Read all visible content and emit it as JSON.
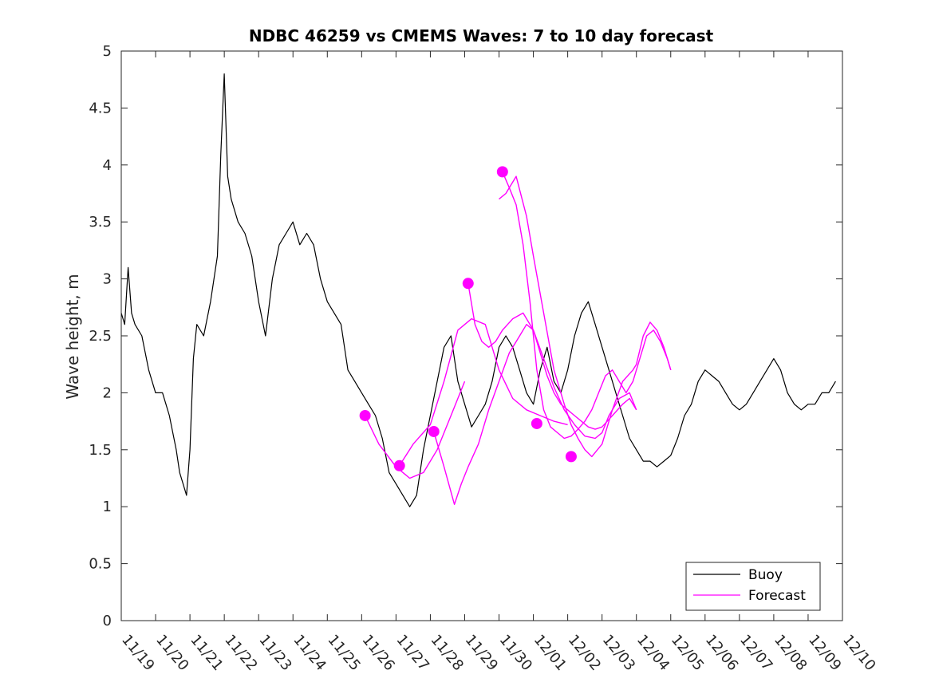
{
  "chart_data": {
    "type": "line",
    "title": "NDBC 46259 vs CMEMS Waves: 7 to 10 day forecast",
    "xlabel": "",
    "ylabel": "Wave height, m",
    "xlim": [
      0,
      21
    ],
    "ylim": [
      0,
      5
    ],
    "yticks": [
      0,
      0.5,
      1,
      1.5,
      2,
      2.5,
      3,
      3.5,
      4,
      4.5,
      5
    ],
    "ytick_labels": [
      "0",
      "0.5",
      "1",
      "1.5",
      "2",
      "2.5",
      "3",
      "3.5",
      "4",
      "4.5",
      "5"
    ],
    "xticks": [
      0,
      1,
      2,
      3,
      4,
      5,
      6,
      7,
      8,
      9,
      10,
      11,
      12,
      13,
      14,
      15,
      16,
      17,
      18,
      19,
      20,
      21
    ],
    "xtick_labels": [
      "11/19",
      "11/20",
      "11/21",
      "11/22",
      "11/23",
      "11/24",
      "11/25",
      "11/26",
      "11/27",
      "11/28",
      "11/29",
      "11/30",
      "12/01",
      "12/02",
      "12/03",
      "12/04",
      "12/05",
      "12/06",
      "12/07",
      "12/08",
      "12/09",
      "12/10"
    ],
    "legend": {
      "location": "bottom-right",
      "entries": [
        "Buoy",
        "Forecast"
      ]
    },
    "colors": {
      "buoy": "#000000",
      "forecast": "#ff00ff",
      "axis": "#262626"
    },
    "buoy": {
      "name": "Buoy",
      "x": [
        0,
        0.1,
        0.2,
        0.3,
        0.4,
        0.6,
        0.8,
        1.0,
        1.2,
        1.4,
        1.6,
        1.7,
        1.8,
        1.9,
        2.0,
        2.1,
        2.2,
        2.4,
        2.6,
        2.8,
        2.9,
        3.0,
        3.1,
        3.2,
        3.4,
        3.6,
        3.8,
        4.0,
        4.2,
        4.4,
        4.6,
        4.8,
        5.0,
        5.2,
        5.4,
        5.6,
        5.8,
        6.0,
        6.2,
        6.4,
        6.6,
        6.8,
        7.0,
        7.2,
        7.4,
        7.6,
        7.8,
        8.0,
        8.2,
        8.4,
        8.6,
        8.8,
        9.0,
        9.2,
        9.4,
        9.6,
        9.8,
        10.0,
        10.2,
        10.4,
        10.6,
        10.8,
        11.0,
        11.2,
        11.4,
        11.6,
        11.8,
        12.0,
        12.2,
        12.4,
        12.6,
        12.8,
        13.0,
        13.2,
        13.4,
        13.6,
        13.8,
        14.0,
        14.2,
        14.4,
        14.6,
        14.8,
        15.0,
        15.2,
        15.4,
        15.6,
        15.8,
        16.0,
        16.2,
        16.4,
        16.6,
        16.8,
        17.0,
        17.2,
        17.4,
        17.6,
        17.8,
        18.0,
        18.2,
        18.4,
        18.6,
        18.8,
        19.0,
        19.2,
        19.4,
        19.6,
        19.8,
        20.0,
        20.2,
        20.4,
        20.6,
        20.8
      ],
      "values": [
        2.7,
        2.6,
        3.1,
        2.7,
        2.6,
        2.5,
        2.2,
        2.0,
        2.0,
        1.8,
        1.5,
        1.3,
        1.2,
        1.1,
        1.5,
        2.3,
        2.6,
        2.5,
        2.8,
        3.2,
        4.1,
        4.8,
        3.9,
        3.7,
        3.5,
        3.4,
        3.2,
        2.8,
        2.5,
        3.0,
        3.3,
        3.4,
        3.5,
        3.3,
        3.4,
        3.3,
        3.0,
        2.8,
        2.7,
        2.6,
        2.2,
        2.1,
        2.0,
        1.9,
        1.8,
        1.6,
        1.3,
        1.2,
        1.1,
        1.0,
        1.1,
        1.5,
        1.8,
        2.1,
        2.4,
        2.5,
        2.1,
        1.9,
        1.7,
        1.8,
        1.9,
        2.1,
        2.4,
        2.5,
        2.4,
        2.2,
        2.0,
        1.9,
        2.2,
        2.4,
        2.1,
        2.0,
        2.2,
        2.5,
        2.7,
        2.8,
        2.6,
        2.4,
        2.2,
        2.0,
        1.8,
        1.6,
        1.5,
        1.4,
        1.4,
        1.35,
        1.4,
        1.45,
        1.6,
        1.8,
        1.9,
        2.1,
        2.2,
        2.15,
        2.1,
        2.0,
        1.9,
        1.85,
        1.9,
        2.0,
        2.1,
        2.2,
        2.3,
        2.2,
        2.0,
        1.9,
        1.85,
        1.9,
        1.9,
        2.0,
        2.0,
        2.1
      ]
    },
    "forecasts": [
      {
        "name": "Forecast",
        "x": [
          7.1,
          7.5,
          8.0,
          8.4,
          8.8,
          9.2,
          9.6,
          10.0
        ],
        "values": [
          1.8,
          1.55,
          1.35,
          1.25,
          1.3,
          1.5,
          1.8,
          2.1
        ]
      },
      {
        "name": "Forecast",
        "x": [
          8.1,
          8.5,
          9.0,
          9.4,
          9.8,
          10.2,
          10.6,
          11.0,
          11.4,
          11.8,
          12.2,
          12.6,
          13.0
        ],
        "values": [
          1.36,
          1.55,
          1.72,
          2.1,
          2.55,
          2.65,
          2.6,
          2.2,
          1.95,
          1.85,
          1.8,
          1.75,
          1.72
        ]
      },
      {
        "name": "Forecast",
        "x": [
          9.1,
          9.4,
          9.7,
          9.9,
          10.1,
          10.4,
          10.7,
          11.0,
          11.3,
          11.6,
          11.8,
          12.0,
          12.2,
          12.4,
          12.6,
          12.8,
          13.0,
          13.2,
          13.4,
          13.6,
          13.8,
          14.0,
          14.3,
          14.6,
          14.8,
          15.0
        ],
        "values": [
          1.66,
          1.35,
          1.02,
          1.2,
          1.35,
          1.55,
          1.85,
          2.1,
          2.35,
          2.5,
          2.6,
          2.55,
          2.35,
          2.15,
          2.0,
          1.9,
          1.85,
          1.8,
          1.75,
          1.7,
          1.68,
          1.7,
          1.8,
          1.9,
          1.95,
          1.85
        ]
      },
      {
        "name": "Forecast",
        "x": [
          10.1,
          10.3,
          10.5,
          10.7,
          10.9,
          11.1,
          11.4,
          11.7,
          12.0,
          12.3,
          12.6,
          12.9,
          13.2,
          13.5,
          13.8,
          14.0,
          14.2,
          14.5,
          14.8,
          15.0
        ],
        "values": [
          2.96,
          2.6,
          2.45,
          2.4,
          2.45,
          2.55,
          2.65,
          2.7,
          2.55,
          2.3,
          2.05,
          1.85,
          1.72,
          1.62,
          1.6,
          1.65,
          1.8,
          1.95,
          2.0,
          1.85
        ]
      },
      {
        "name": "Forecast",
        "x": [
          11.1,
          11.3,
          11.5,
          11.7,
          11.9,
          12.1,
          12.3,
          12.5,
          12.7,
          12.9,
          13.1,
          13.3,
          13.5,
          13.7,
          13.9,
          14.1,
          14.3,
          14.5,
          14.7,
          14.9,
          15.1,
          15.3,
          15.5,
          15.7,
          15.9,
          16.0
        ],
        "values": [
          3.94,
          3.8,
          3.65,
          3.3,
          2.8,
          2.2,
          1.85,
          1.7,
          1.65,
          1.6,
          1.62,
          1.68,
          1.75,
          1.85,
          2.0,
          2.15,
          2.2,
          2.1,
          2.0,
          2.1,
          2.3,
          2.5,
          2.55,
          2.45,
          2.3,
          2.2
        ]
      },
      {
        "name": "Forecast",
        "x": [
          11.0,
          11.2,
          11.5,
          11.8,
          12.0,
          12.3,
          12.6,
          12.9,
          13.1,
          13.3,
          13.5,
          13.7,
          14.0,
          14.3,
          14.6,
          14.9,
          15.0,
          15.2,
          15.4,
          15.6,
          15.8,
          16.0
        ],
        "values": [
          3.7,
          3.75,
          3.9,
          3.55,
          3.2,
          2.7,
          2.2,
          1.9,
          1.72,
          1.6,
          1.5,
          1.44,
          1.55,
          1.85,
          2.1,
          2.2,
          2.25,
          2.5,
          2.62,
          2.55,
          2.4,
          2.2
        ]
      }
    ],
    "forecast_markers": {
      "x": [
        7.1,
        8.1,
        9.1,
        10.1,
        11.1,
        12.1,
        13.1
      ],
      "values": [
        1.8,
        1.36,
        1.66,
        2.96,
        3.94,
        1.73,
        1.44
      ]
    }
  }
}
